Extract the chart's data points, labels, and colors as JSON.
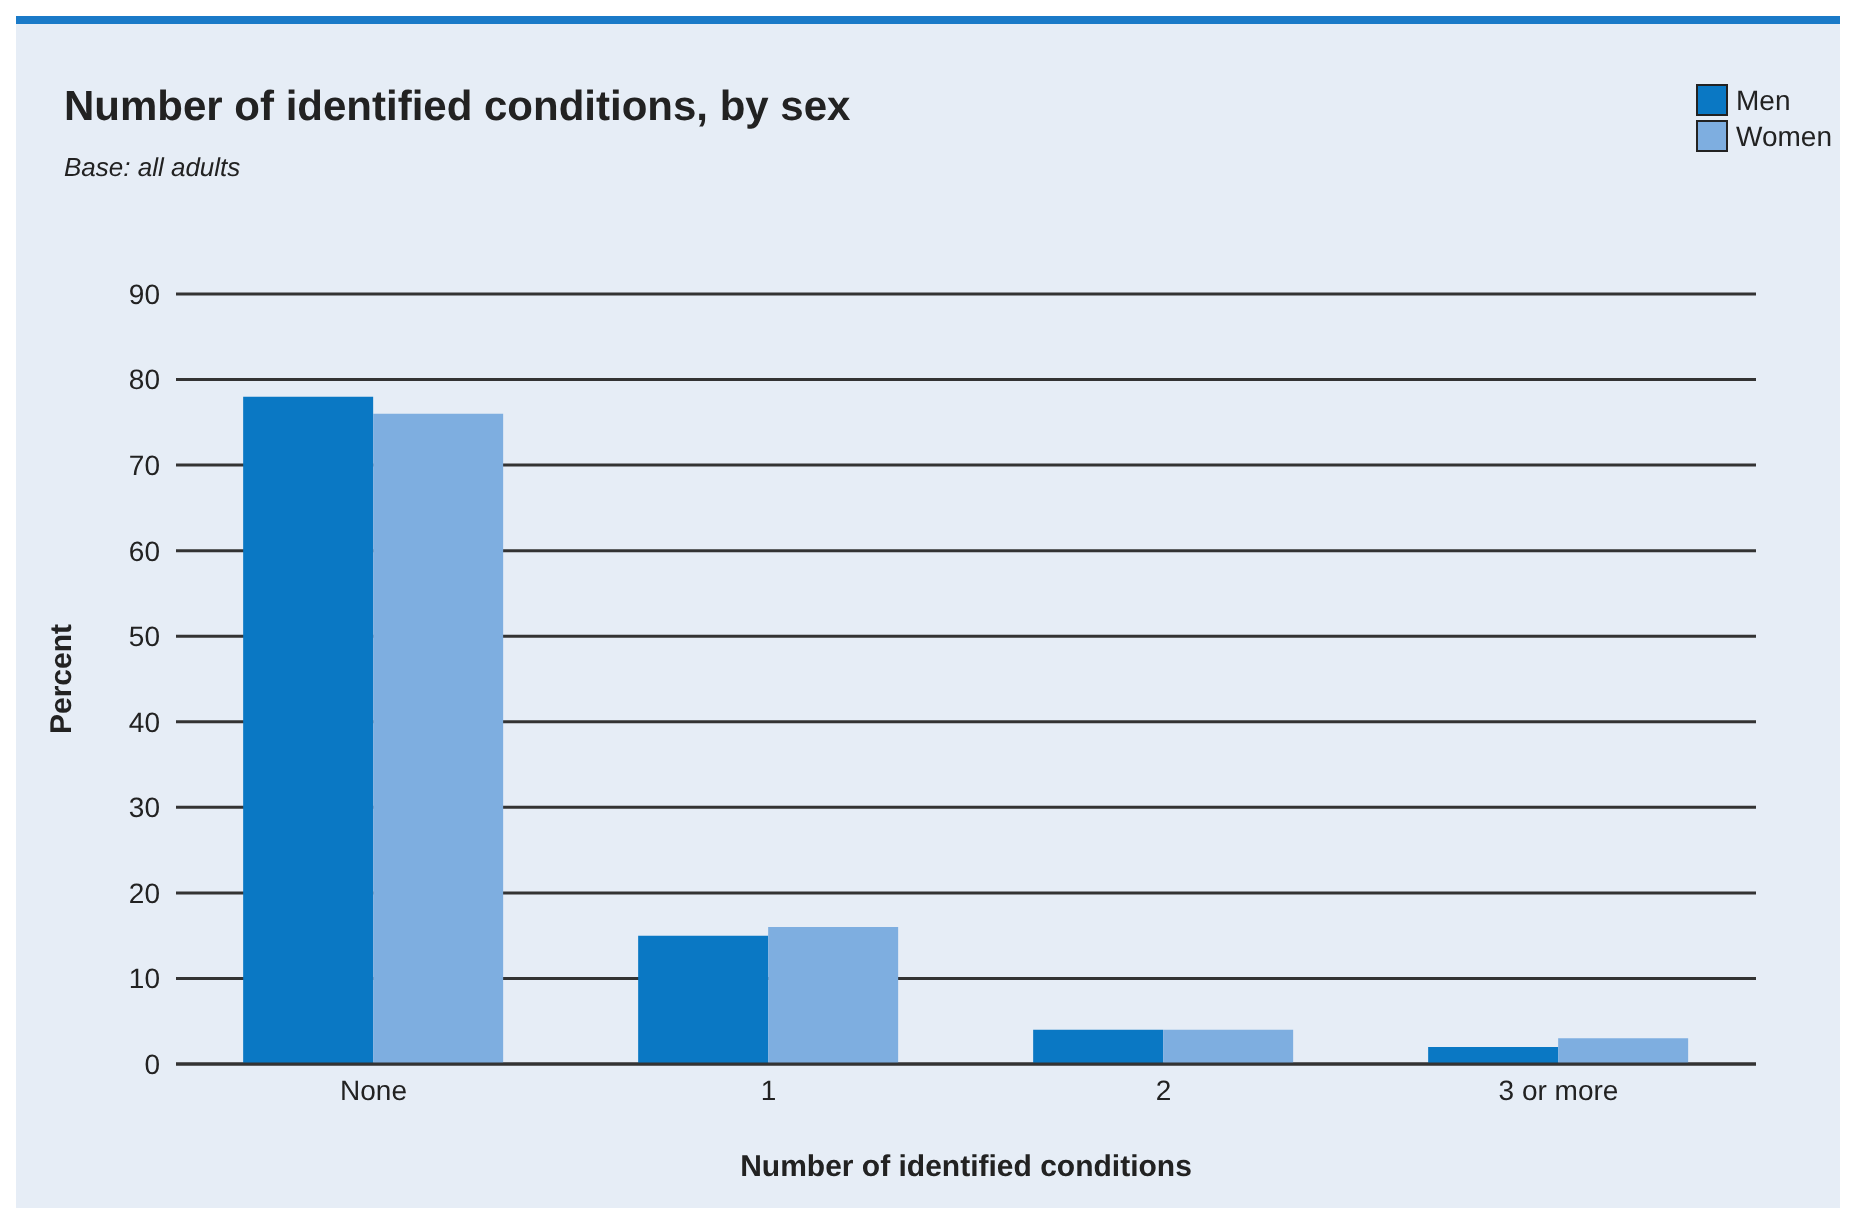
{
  "chart_data": {
    "type": "bar",
    "title": "Number of identified conditions, by sex",
    "subtitle": "Base: all adults",
    "xlabel": "Number of identified conditions",
    "ylabel": "Percent",
    "categories": [
      "None",
      "1",
      "2",
      "3 or more"
    ],
    "series": [
      {
        "name": "Men",
        "color": "#0a78c4",
        "values": [
          78,
          15,
          4,
          2
        ]
      },
      {
        "name": "Women",
        "color": "#7eaee0",
        "values": [
          76,
          16,
          4,
          3
        ]
      }
    ],
    "ylim": [
      0,
      90
    ],
    "yticks": [
      0,
      10,
      20,
      30,
      40,
      50,
      60,
      70,
      80,
      90
    ],
    "grid": "y",
    "legend": "top right"
  }
}
